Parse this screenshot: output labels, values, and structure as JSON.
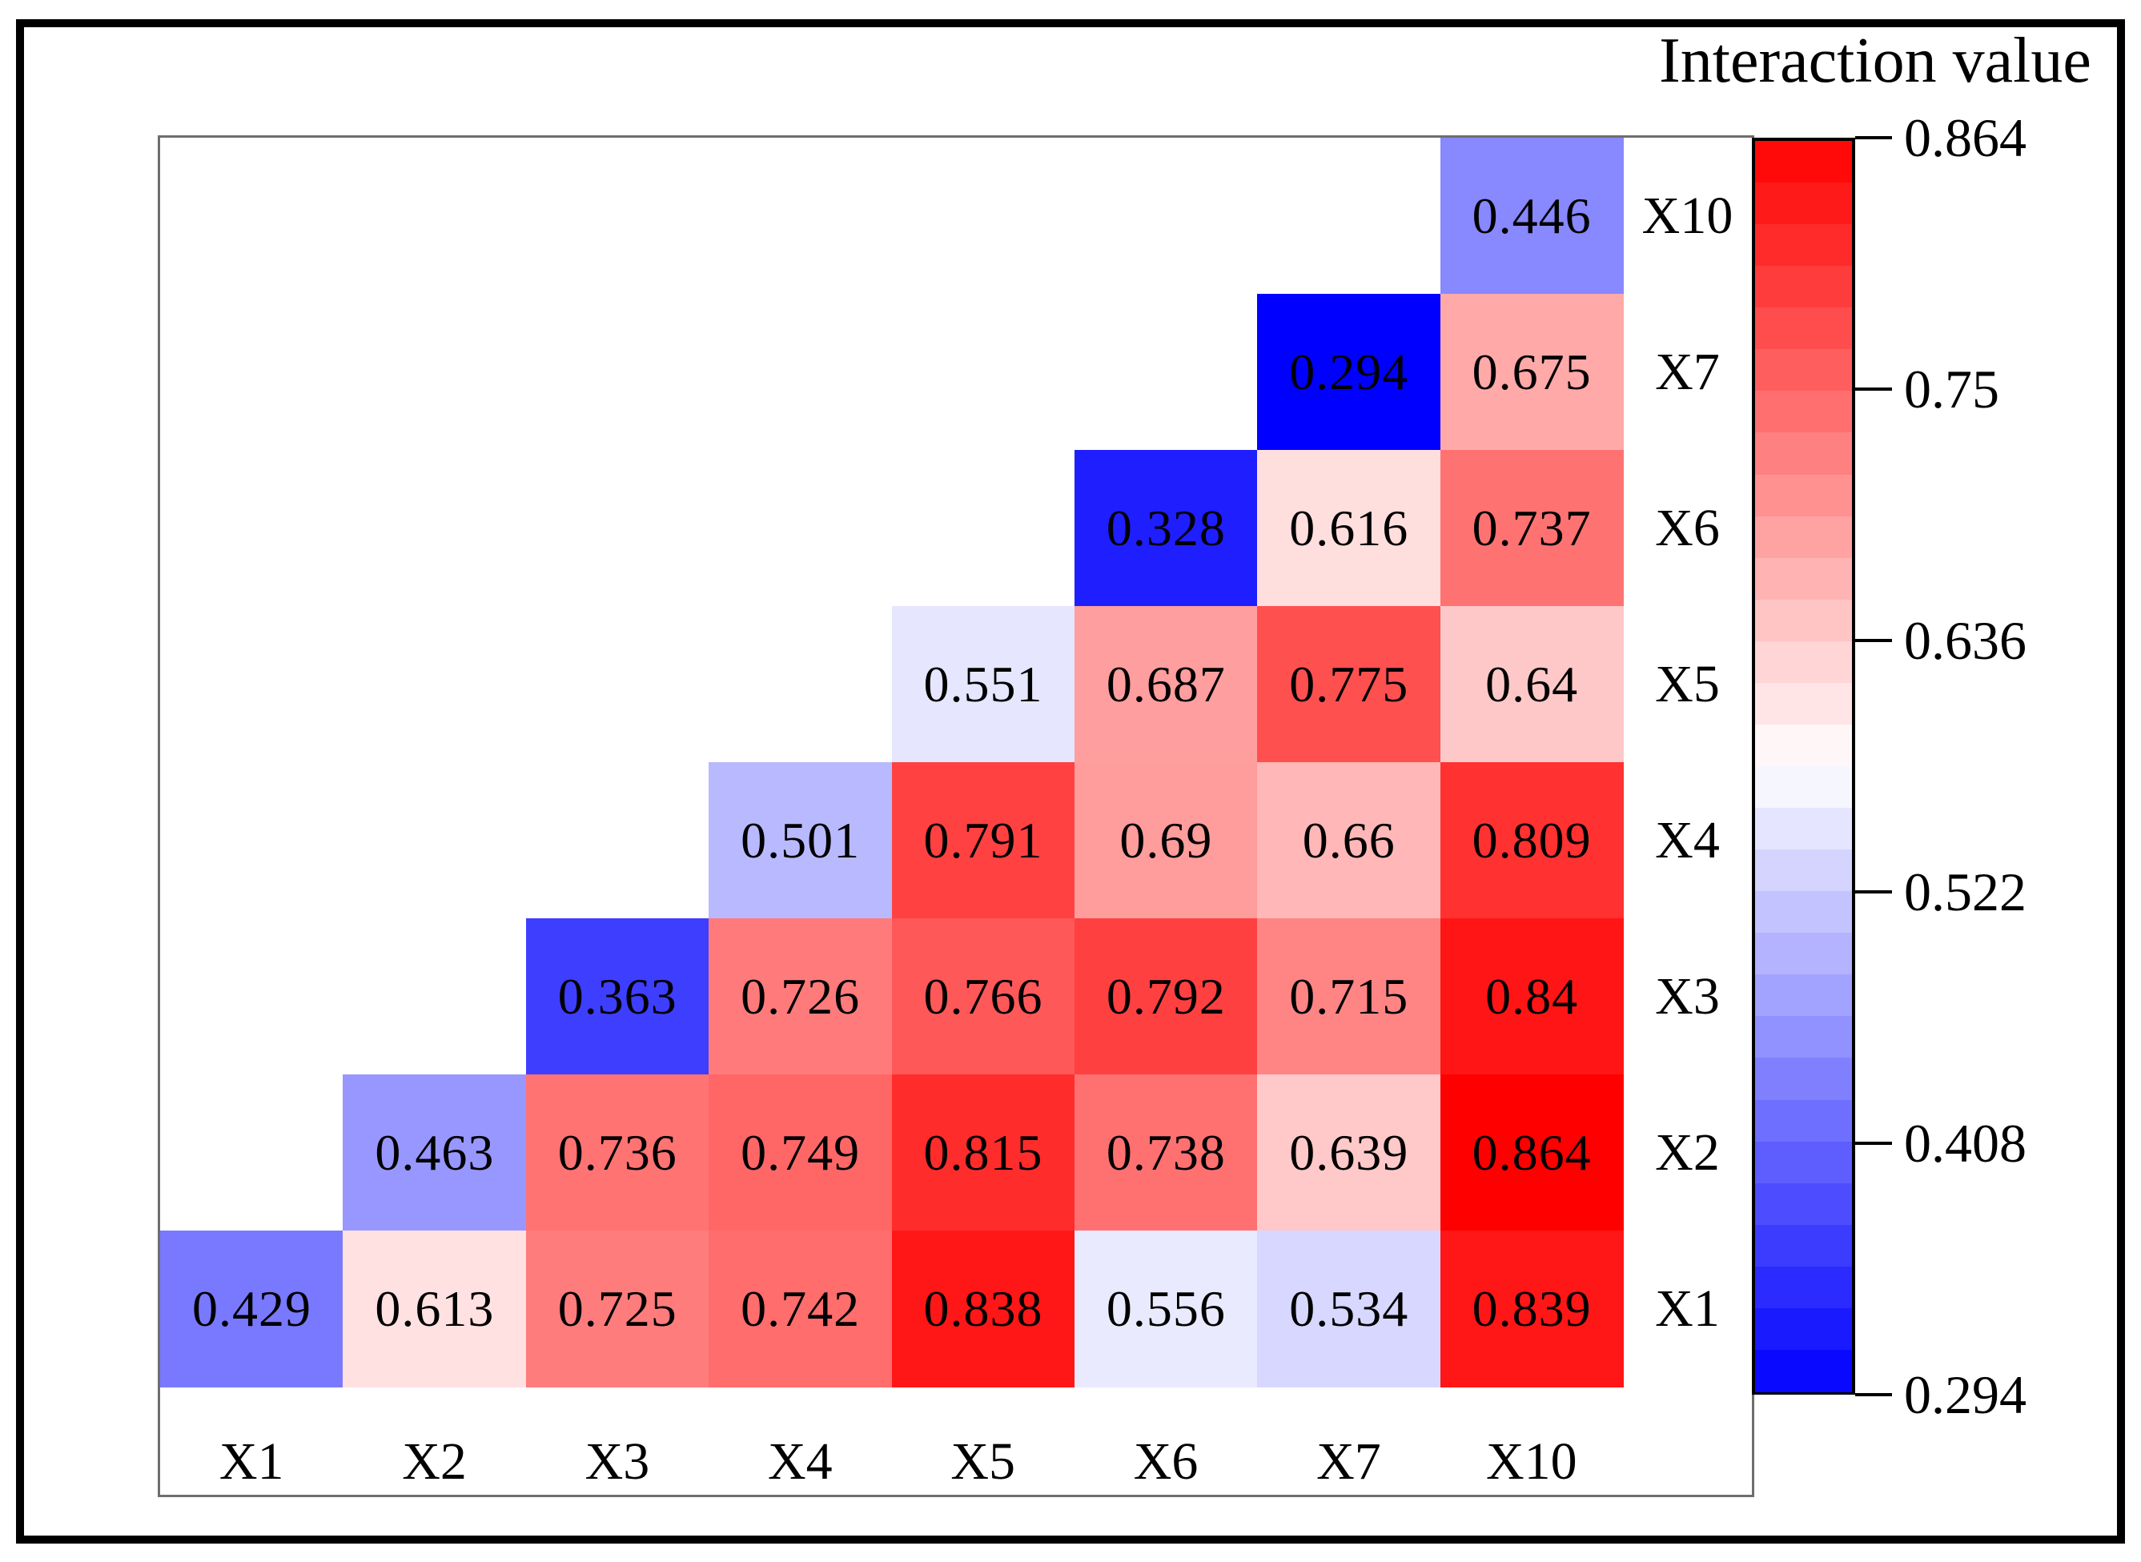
{
  "figure": {
    "kind": "lower-triangular interaction heatmap"
  },
  "chart_data": {
    "type": "heatmap",
    "x_categories": [
      "X1",
      "X2",
      "X3",
      "X4",
      "X5",
      "X6",
      "X7",
      "X10"
    ],
    "y_categories_top_to_bottom": [
      "X10",
      "X7",
      "X6",
      "X5",
      "X4",
      "X3",
      "X2",
      "X1"
    ],
    "rows": [
      {
        "label": "X10",
        "cells": [
          {
            "col": "X10",
            "value": 0.446
          }
        ]
      },
      {
        "label": "X7",
        "cells": [
          {
            "col": "X7",
            "value": 0.294
          },
          {
            "col": "X10",
            "value": 0.675
          }
        ]
      },
      {
        "label": "X6",
        "cells": [
          {
            "col": "X6",
            "value": 0.328
          },
          {
            "col": "X7",
            "value": 0.616
          },
          {
            "col": "X10",
            "value": 0.737
          }
        ]
      },
      {
        "label": "X5",
        "cells": [
          {
            "col": "X5",
            "value": 0.551
          },
          {
            "col": "X6",
            "value": 0.687
          },
          {
            "col": "X7",
            "value": 0.775
          },
          {
            "col": "X10",
            "value": 0.64
          }
        ]
      },
      {
        "label": "X4",
        "cells": [
          {
            "col": "X4",
            "value": 0.501
          },
          {
            "col": "X5",
            "value": 0.791
          },
          {
            "col": "X6",
            "value": 0.69
          },
          {
            "col": "X7",
            "value": 0.66
          },
          {
            "col": "X10",
            "value": 0.809
          }
        ]
      },
      {
        "label": "X3",
        "cells": [
          {
            "col": "X3",
            "value": 0.363
          },
          {
            "col": "X4",
            "value": 0.726
          },
          {
            "col": "X5",
            "value": 0.766
          },
          {
            "col": "X6",
            "value": 0.792
          },
          {
            "col": "X7",
            "value": 0.715
          },
          {
            "col": "X10",
            "value": 0.84
          }
        ]
      },
      {
        "label": "X2",
        "cells": [
          {
            "col": "X2",
            "value": 0.463
          },
          {
            "col": "X3",
            "value": 0.736
          },
          {
            "col": "X4",
            "value": 0.749
          },
          {
            "col": "X5",
            "value": 0.815
          },
          {
            "col": "X6",
            "value": 0.738
          },
          {
            "col": "X7",
            "value": 0.639
          },
          {
            "col": "X10",
            "value": 0.864
          }
        ]
      },
      {
        "label": "X1",
        "cells": [
          {
            "col": "X1",
            "value": 0.429
          },
          {
            "col": "X2",
            "value": 0.613
          },
          {
            "col": "X3",
            "value": 0.725
          },
          {
            "col": "X4",
            "value": 0.742
          },
          {
            "col": "X5",
            "value": 0.838
          },
          {
            "col": "X6",
            "value": 0.556
          },
          {
            "col": "X7",
            "value": 0.534
          },
          {
            "col": "X10",
            "value": 0.839
          }
        ]
      }
    ],
    "colormap": {
      "low": "#0000FF",
      "mid": "#FFFFFF",
      "high": "#FF0000",
      "levels": 30
    },
    "colorbar": {
      "title": "Interaction value",
      "vmin": 0.294,
      "vmax": 0.864,
      "ticks": [
        0.864,
        0.75,
        0.636,
        0.522,
        0.408,
        0.294
      ]
    }
  }
}
